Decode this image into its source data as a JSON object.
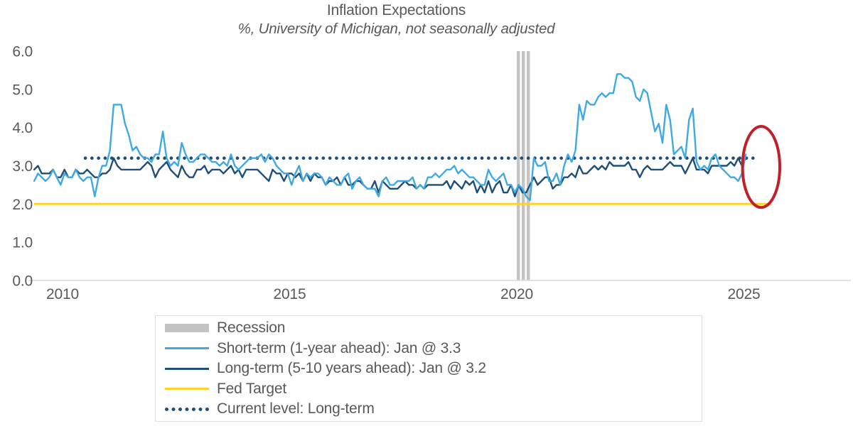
{
  "title": "Inflation Expectations",
  "subtitle": "%, University of Michigan, not seasonally adjusted",
  "colors": {
    "light_blue": "#3FA9E1",
    "navy": "#1F4E79",
    "yellow": "#FFD32B",
    "recession_gray": "#C4C4C4",
    "axis_gray": "#D9D9D9",
    "text_gray": "#595959",
    "red": "#C0202A"
  },
  "legend": {
    "items": [
      {
        "key": "recession",
        "label": "Recession",
        "swatch": "bar",
        "color_key": "recession_gray"
      },
      {
        "key": "short-term",
        "label": "Short-term (1-year ahead): Jan @ 3.3",
        "swatch": "line",
        "color_key": "light_blue"
      },
      {
        "key": "long-term",
        "label": "Long-term (5-10 years ahead): Jan @ 3.2",
        "swatch": "line",
        "color_key": "navy"
      },
      {
        "key": "fed-target",
        "label": "Fed Target",
        "swatch": "line",
        "color_key": "yellow"
      },
      {
        "key": "current-level",
        "label": "Current level: Long-term",
        "swatch": "dotted",
        "color_key": "navy"
      }
    ]
  },
  "chart_data": {
    "type": "line",
    "title": "Inflation Expectations",
    "subtitle": "%, University of Michigan, not seasonally adjusted",
    "ylim": [
      0.0,
      6.0
    ],
    "y_ticks": [
      "0.0",
      "1.0",
      "2.0",
      "3.0",
      "4.0",
      "5.0",
      "6.0"
    ],
    "x_ticks": [
      2010,
      2015,
      2020,
      2025
    ],
    "x_range_years": [
      2009.37,
      2025.4
    ],
    "grid": "baseline-only",
    "legend_position": "bottom",
    "fed_target": {
      "value": 2.0
    },
    "current_level": {
      "value": 3.2,
      "start_year": 2010.5,
      "end_year": 2025.2
    },
    "recession": {
      "start_year": 2020.0,
      "end_year": 2020.29,
      "stripes": 3
    },
    "annotation_ellipse": {
      "center_year": 2025.38,
      "center_value": 2.97,
      "rx_years": 0.41,
      "ry_units": 1.06,
      "note": "circles latest Jan 2025 readings"
    },
    "series": [
      {
        "key": "short-term",
        "name": "Short-term (1-year ahead)",
        "latest": "Jan @ 3.3",
        "color_key": "light_blue",
        "start_year": 2009.375,
        "frequency": "monthly",
        "values": [
          2.6,
          2.8,
          2.7,
          2.6,
          2.7,
          2.9,
          2.7,
          2.5,
          2.8,
          2.7,
          2.7,
          2.9,
          2.7,
          2.6,
          2.7,
          2.7,
          2.2,
          2.7,
          3.0,
          3.0,
          3.4,
          4.6,
          4.6,
          4.6,
          4.1,
          3.8,
          3.4,
          3.5,
          3.3,
          3.2,
          3.2,
          3.1,
          3.3,
          3.3,
          3.9,
          3.2,
          3.0,
          3.1,
          3.0,
          3.6,
          3.3,
          3.1,
          3.1,
          3.2,
          3.3,
          3.3,
          3.2,
          3.1,
          3.1,
          3.0,
          3.1,
          3.0,
          3.3,
          3.0,
          2.9,
          3.0,
          3.1,
          3.2,
          3.2,
          3.2,
          3.3,
          3.1,
          3.3,
          3.2,
          3.0,
          2.9,
          2.8,
          2.8,
          2.5,
          2.8,
          3.0,
          2.6,
          2.8,
          2.7,
          2.8,
          2.8,
          2.7,
          2.5,
          2.7,
          2.6,
          2.5,
          2.5,
          2.7,
          2.8,
          2.4,
          2.6,
          2.7,
          2.5,
          2.4,
          2.4,
          2.4,
          2.2,
          2.6,
          2.7,
          2.5,
          2.5,
          2.6,
          2.6,
          2.6,
          2.6,
          2.7,
          2.4,
          2.5,
          2.4,
          2.7,
          2.7,
          2.8,
          2.7,
          2.8,
          2.9,
          2.9,
          3.0,
          2.8,
          2.9,
          2.8,
          2.7,
          2.7,
          2.6,
          2.5,
          2.5,
          2.9,
          2.7,
          2.6,
          2.7,
          2.8,
          2.5,
          2.5,
          2.3,
          2.5,
          2.4,
          2.2,
          2.1,
          3.2,
          3.0,
          3.0,
          3.1,
          2.6,
          2.6,
          2.8,
          2.5,
          3.0,
          3.3,
          3.1,
          3.4,
          4.6,
          4.2,
          4.7,
          4.6,
          4.6,
          4.8,
          4.9,
          4.8,
          4.9,
          4.9,
          5.4,
          5.4,
          5.3,
          5.3,
          5.2,
          4.8,
          4.7,
          5.0,
          4.9,
          4.4,
          3.9,
          4.1,
          3.6,
          4.6,
          4.2,
          3.3,
          3.4,
          3.5,
          3.2,
          4.2,
          4.5,
          3.1,
          2.9,
          3.0,
          2.9,
          3.2,
          3.3,
          3.0,
          2.9,
          2.8,
          2.7,
          2.7,
          2.6,
          2.8,
          3.3
        ]
      },
      {
        "key": "long-term",
        "name": "Long-term (5-10 years ahead)",
        "latest": "Jan @ 3.2",
        "color_key": "navy",
        "start_year": 2009.375,
        "frequency": "monthly",
        "values": [
          2.9,
          3.0,
          2.8,
          2.8,
          2.8,
          2.9,
          2.7,
          2.7,
          2.9,
          2.7,
          2.7,
          2.9,
          2.8,
          2.8,
          2.9,
          2.8,
          2.7,
          2.7,
          2.8,
          2.8,
          2.9,
          3.2,
          3.0,
          2.9,
          2.9,
          2.9,
          2.9,
          2.9,
          2.9,
          3.0,
          3.1,
          3.0,
          2.7,
          2.9,
          3.0,
          3.1,
          2.9,
          2.8,
          2.7,
          3.0,
          2.8,
          2.7,
          2.7,
          2.9,
          2.9,
          3.0,
          2.8,
          2.9,
          2.9,
          2.9,
          2.8,
          2.9,
          3.0,
          2.8,
          2.9,
          2.7,
          2.9,
          2.9,
          2.9,
          2.9,
          2.8,
          2.7,
          2.6,
          2.9,
          2.8,
          2.8,
          2.6,
          2.8,
          2.8,
          2.7,
          2.8,
          2.6,
          2.8,
          2.6,
          2.8,
          2.7,
          2.7,
          2.5,
          2.6,
          2.6,
          2.7,
          2.5,
          2.7,
          2.5,
          2.5,
          2.6,
          2.6,
          2.5,
          2.4,
          2.4,
          2.6,
          2.3,
          2.6,
          2.5,
          2.4,
          2.4,
          2.4,
          2.5,
          2.6,
          2.5,
          2.5,
          2.4,
          2.5,
          2.4,
          2.5,
          2.5,
          2.5,
          2.5,
          2.5,
          2.6,
          2.4,
          2.6,
          2.5,
          2.4,
          2.6,
          2.5,
          2.6,
          2.3,
          2.5,
          2.3,
          2.6,
          2.3,
          2.5,
          2.6,
          2.3,
          2.3,
          2.5,
          2.2,
          2.5,
          2.3,
          2.3,
          2.5,
          2.7,
          2.5,
          2.6,
          2.7,
          2.7,
          2.4,
          2.5,
          2.5,
          2.7,
          2.7,
          2.8,
          2.7,
          3.0,
          2.8,
          2.8,
          2.9,
          3.0,
          2.9,
          3.0,
          2.9,
          3.1,
          3.0,
          3.0,
          3.0,
          3.0,
          3.1,
          2.9,
          2.9,
          2.7,
          2.9,
          3.0,
          2.9,
          2.9,
          2.9,
          2.9,
          3.0,
          3.1,
          3.0,
          3.0,
          3.0,
          2.8,
          3.0,
          3.2,
          2.9,
          2.9,
          2.9,
          2.8,
          3.0,
          3.0,
          3.0,
          3.0,
          3.0,
          3.1,
          3.0,
          3.2,
          3.0,
          3.2
        ]
      }
    ]
  }
}
